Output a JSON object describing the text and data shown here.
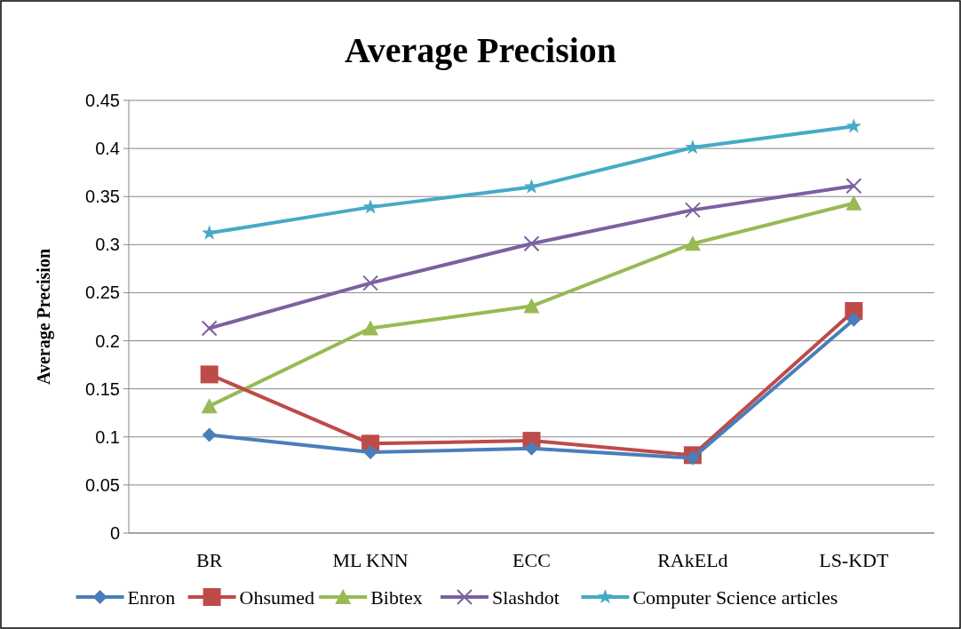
{
  "chart_data": {
    "type": "line",
    "title": "Average Precision",
    "ylabel": "Average Precision",
    "categories": [
      "BR",
      "ML KNN",
      "ECC",
      "RAkELd",
      "LS-KDT"
    ],
    "series": [
      {
        "name": "Enron",
        "color": "#4a7ebb",
        "marker": "diamond",
        "values": [
          0.102,
          0.084,
          0.088,
          0.078,
          0.222
        ]
      },
      {
        "name": "Ohsumed",
        "color": "#be4b48",
        "marker": "square",
        "values": [
          0.165,
          0.093,
          0.096,
          0.081,
          0.231
        ]
      },
      {
        "name": "Bibtex",
        "color": "#98b954",
        "marker": "triangle",
        "values": [
          0.132,
          0.213,
          0.236,
          0.301,
          0.343
        ]
      },
      {
        "name": "Slashdot",
        "color": "#7d60a0",
        "marker": "cross",
        "values": [
          0.213,
          0.26,
          0.301,
          0.336,
          0.361
        ]
      },
      {
        "name": "Computer Science articles",
        "color": "#46aac5",
        "marker": "star",
        "values": [
          0.312,
          0.339,
          0.36,
          0.401,
          0.423
        ]
      }
    ],
    "ylim": [
      0,
      0.45
    ],
    "yticks": [
      0,
      0.05,
      0.1,
      0.15,
      0.2,
      0.25,
      0.3,
      0.35,
      0.4,
      0.45
    ],
    "grid": "y",
    "legend": "bottom"
  }
}
